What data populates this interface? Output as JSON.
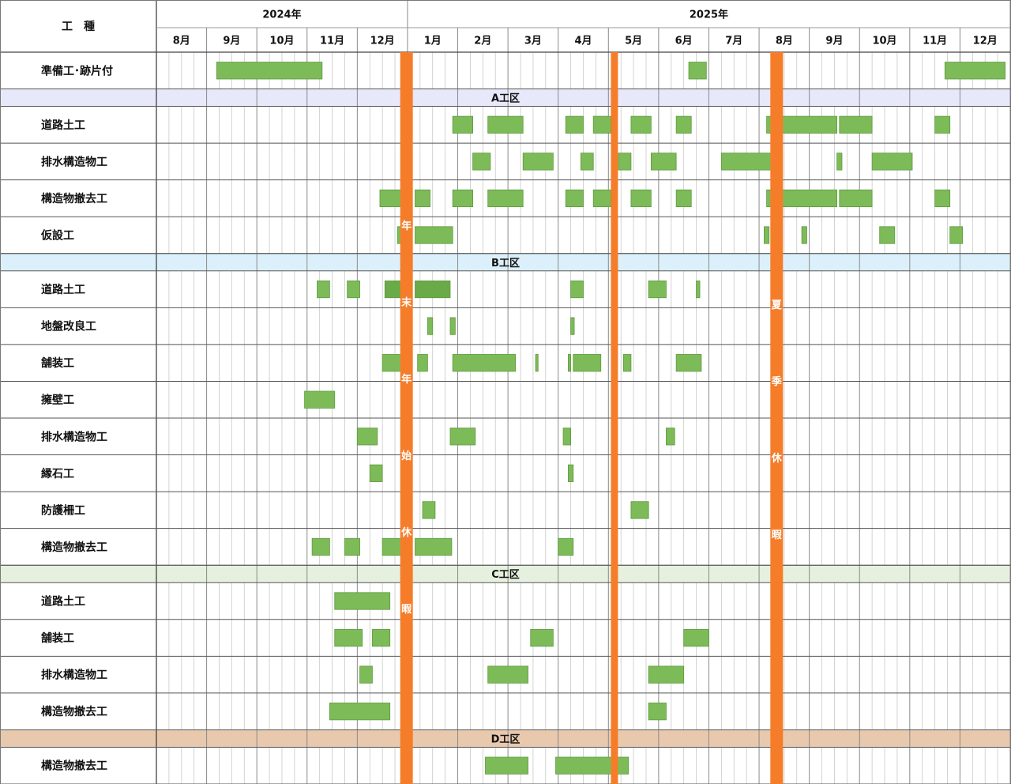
{
  "colors": {
    "bar": "#7dbb59",
    "bar_dark": "#6aaa48",
    "bar_border": "#5e9a3e",
    "holiday": "#f57d2a",
    "grid": "#9a9a9a",
    "section_A": "#e8e8fb",
    "section_B": "#dcf0fb",
    "section_C": "#e6f0de",
    "section_D": "#e8c9ad"
  },
  "header": {
    "corner_label": "工　種",
    "years": [
      {
        "label": "2024年",
        "first_month": 0,
        "months": 5
      },
      {
        "label": "2025年",
        "first_month": 5,
        "months": 12
      }
    ],
    "months": [
      "8月",
      "9月",
      "10月",
      "11月",
      "12月",
      "1月",
      "2月",
      "3月",
      "4月",
      "5月",
      "6月",
      "7月",
      "8月",
      "9月",
      "10月",
      "11月",
      "12月"
    ]
  },
  "chart_data": {
    "type": "gantt",
    "time_axis": {
      "start": "2024-08",
      "end": "2025-12",
      "unit": "month"
    },
    "rows": [
      {
        "kind": "task",
        "label": "準備工･跡片付",
        "bars": [
          [
            1.2,
            3.3
          ],
          [
            10.6,
            10.95
          ],
          [
            15.7,
            16.9
          ]
        ]
      },
      {
        "kind": "section",
        "label": "A工区",
        "color": "section_A"
      },
      {
        "kind": "task",
        "label": "道路土工",
        "bars": [
          [
            5.9,
            6.3
          ],
          [
            6.6,
            7.3
          ],
          [
            8.15,
            8.5
          ],
          [
            8.7,
            9.05
          ],
          [
            9.45,
            9.85
          ],
          [
            10.35,
            10.65
          ],
          [
            12.15,
            13.55
          ],
          [
            13.6,
            14.25
          ],
          [
            15.5,
            15.8
          ]
        ]
      },
      {
        "kind": "task",
        "label": "排水構造物工",
        "bars": [
          [
            6.3,
            6.65
          ],
          [
            7.3,
            7.9
          ],
          [
            8.45,
            8.7
          ],
          [
            9.2,
            9.45
          ],
          [
            9.85,
            10.35
          ],
          [
            11.25,
            12.25
          ],
          [
            13.55,
            13.65
          ],
          [
            14.25,
            15.05
          ]
        ]
      },
      {
        "kind": "task",
        "label": "構造物撤去工",
        "bars": [
          [
            4.45,
            4.95
          ],
          [
            5.15,
            5.45
          ],
          [
            5.9,
            6.3
          ],
          [
            6.6,
            7.3
          ],
          [
            8.15,
            8.5
          ],
          [
            8.7,
            9.05
          ],
          [
            9.45,
            9.85
          ],
          [
            10.35,
            10.65
          ],
          [
            12.15,
            13.55
          ],
          [
            13.6,
            14.25
          ],
          [
            15.5,
            15.8
          ]
        ]
      },
      {
        "kind": "task",
        "label": "仮設工",
        "bars": [
          [
            4.8,
            4.95
          ],
          [
            5.15,
            5.9
          ],
          [
            12.1,
            12.2
          ],
          [
            12.25,
            12.4
          ],
          [
            12.85,
            12.95
          ],
          [
            14.4,
            14.7
          ],
          [
            15.8,
            16.05
          ]
        ]
      },
      {
        "kind": "section",
        "label": "B工区",
        "color": "section_B"
      },
      {
        "kind": "task",
        "label": "道路土工",
        "bars": [
          [
            3.2,
            3.45
          ],
          [
            3.8,
            4.05
          ],
          [
            4.55,
            4.95
          ],
          [
            5.15,
            5.85
          ],
          [
            8.25,
            8.5
          ],
          [
            9.8,
            10.15
          ],
          [
            10.75,
            10.82
          ]
        ]
      },
      {
        "kind": "task",
        "label": "地盤改良工",
        "bars": [
          [
            5.4,
            5.5
          ],
          [
            5.85,
            5.95
          ],
          [
            8.25,
            8.32
          ]
        ]
      },
      {
        "kind": "task",
        "label": "舗装工",
        "bars": [
          [
            4.5,
            4.9
          ],
          [
            5.2,
            5.4
          ],
          [
            5.9,
            7.15
          ],
          [
            7.55,
            7.6
          ],
          [
            8.2,
            8.25
          ],
          [
            8.3,
            8.85
          ],
          [
            9.3,
            9.45
          ],
          [
            10.35,
            10.85
          ]
        ]
      },
      {
        "kind": "task",
        "label": "擁壁工",
        "bars": [
          [
            2.95,
            3.55
          ]
        ]
      },
      {
        "kind": "task",
        "label": "排水構造物工",
        "bars": [
          [
            4.0,
            4.4
          ],
          [
            5.85,
            6.35
          ],
          [
            8.1,
            8.25
          ],
          [
            10.15,
            10.32
          ]
        ]
      },
      {
        "kind": "task",
        "label": "縁石工",
        "bars": [
          [
            4.25,
            4.5
          ],
          [
            8.2,
            8.3
          ]
        ]
      },
      {
        "kind": "task",
        "label": "防護柵工",
        "bars": [
          [
            5.3,
            5.55
          ],
          [
            9.45,
            9.8
          ]
        ]
      },
      {
        "kind": "task",
        "label": "構造物撤去工",
        "bars": [
          [
            3.1,
            3.45
          ],
          [
            3.75,
            4.05
          ],
          [
            4.5,
            4.9
          ],
          [
            5.15,
            5.88
          ],
          [
            8.0,
            8.3
          ]
        ]
      },
      {
        "kind": "section",
        "label": "C工区",
        "color": "section_C"
      },
      {
        "kind": "task",
        "label": "道路土工",
        "bars": [
          [
            3.55,
            4.65
          ]
        ]
      },
      {
        "kind": "task",
        "label": "舗装工",
        "bars": [
          [
            3.55,
            4.1
          ],
          [
            4.3,
            4.65
          ],
          [
            7.45,
            7.9
          ],
          [
            10.5,
            11.0
          ]
        ]
      },
      {
        "kind": "task",
        "label": "排水構造物工",
        "bars": [
          [
            4.05,
            4.3
          ],
          [
            6.6,
            7.4
          ],
          [
            9.8,
            10.5
          ]
        ]
      },
      {
        "kind": "task",
        "label": "構造物撤去工",
        "bars": [
          [
            3.45,
            4.65
          ],
          [
            9.8,
            10.15
          ]
        ]
      },
      {
        "kind": "section",
        "label": "D工区",
        "color": "section_D"
      },
      {
        "kind": "task",
        "label": "構造物撤去工",
        "bars": [
          [
            6.55,
            7.4
          ],
          [
            7.95,
            9.4
          ]
        ]
      }
    ],
    "dark_bars": [
      [
        7,
        2
      ],
      [
        7,
        3
      ],
      [
        15,
        3
      ]
    ],
    "holidays": [
      {
        "label": "年末年始休暇",
        "position": 4.98
      },
      {
        "label": "",
        "position": 9.12
      },
      {
        "label": "夏季休暇",
        "position": 12.35
      }
    ]
  }
}
